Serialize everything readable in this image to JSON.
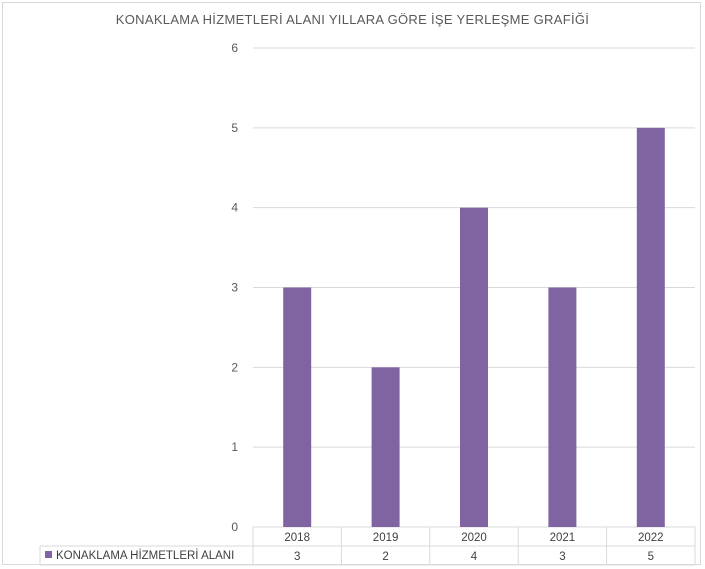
{
  "chart_data": {
    "type": "bar",
    "title": "KONAKLAMA HİZMETLERİ ALANI YILLARA GÖRE İŞE YERLEŞME GRAFİĞİ",
    "categories": [
      "2018",
      "2019",
      "2020",
      "2021",
      "2022"
    ],
    "series": [
      {
        "name": "KONAKLAMA HİZMETLERİ ALANI",
        "values": [
          3,
          2,
          4,
          3,
          5
        ],
        "color": "#8064a2"
      }
    ],
    "ylim": [
      0,
      6
    ],
    "yticks": [
      0,
      1,
      2,
      3,
      4,
      5,
      6
    ],
    "grid": true,
    "legend": "data-table"
  }
}
